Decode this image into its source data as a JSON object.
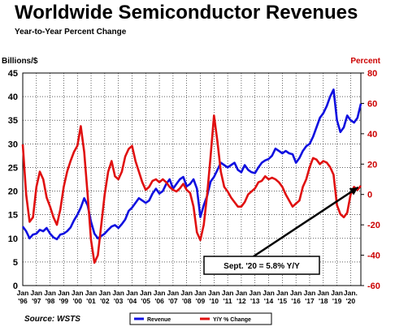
{
  "title": "Worldwide Semiconductor Revenues",
  "subtitle": "Year-to-Year Percent Change",
  "source": "Source: WSTS",
  "colors": {
    "revenue": "#1010e0",
    "yy": "#e01010",
    "right_axis": "#cc0000",
    "grid": "#000000",
    "arrow": "#000000"
  },
  "chart_data": {
    "type": "line",
    "x_tick_labels": [
      {
        "top": "Jan",
        "bottom": "'96"
      },
      {
        "top": "Jan",
        "bottom": "'97"
      },
      {
        "top": "Jan",
        "bottom": "'98"
      },
      {
        "top": "Jan",
        "bottom": "'99"
      },
      {
        "top": "Jan",
        "bottom": "'00"
      },
      {
        "top": "Jan",
        "bottom": "'01"
      },
      {
        "top": "Jan",
        "bottom": "'02"
      },
      {
        "top": "Jan",
        "bottom": "'03"
      },
      {
        "top": "Jan",
        "bottom": "'04"
      },
      {
        "top": "Jan",
        "bottom": "'05"
      },
      {
        "top": "Jan",
        "bottom": "'06"
      },
      {
        "top": "Jan",
        "bottom": "'07"
      },
      {
        "top": "Jan",
        "bottom": "'08"
      },
      {
        "top": "Jan",
        "bottom": "'09"
      },
      {
        "top": "Jan",
        "bottom": "'10"
      },
      {
        "top": "Jan",
        "bottom": "'11"
      },
      {
        "top": "Jan",
        "bottom": "'12"
      },
      {
        "top": "Jan",
        "bottom": "'13"
      },
      {
        "top": "Jan",
        "bottom": "'14"
      },
      {
        "top": "Jan",
        "bottom": "'15"
      },
      {
        "top": "Jan",
        "bottom": "'16"
      },
      {
        "top": "Jan",
        "bottom": "'17"
      },
      {
        "top": "Jan",
        "bottom": "'18"
      },
      {
        "top": "Jan",
        "bottom": "'19"
      },
      {
        "top": "Jan.",
        "bottom": "'20"
      }
    ],
    "x_range": [
      1996.0,
      2020.75
    ],
    "y_left": {
      "label": "Billions/$",
      "min": 0,
      "max": 45,
      "ticks": [
        0,
        5,
        10,
        15,
        20,
        25,
        30,
        35,
        40,
        45
      ]
    },
    "y_right": {
      "label": "Percent",
      "min": -60,
      "max": 80,
      "ticks": [
        -60,
        -40,
        -20,
        0,
        20,
        40,
        60,
        80
      ]
    },
    "grid": true,
    "legend_position": "bottom",
    "annotation": {
      "text": "Sept. '20 = 5.8% Y/Y",
      "points_to": [
        2020.67,
        5.8
      ]
    },
    "series": [
      {
        "name": "Revenue",
        "axis": "left",
        "color": "#1010e0",
        "x": [
          1996.0,
          1996.25,
          1996.5,
          1996.75,
          1997.0,
          1997.25,
          1997.5,
          1997.75,
          1998.0,
          1998.25,
          1998.5,
          1998.75,
          1999.0,
          1999.25,
          1999.5,
          1999.75,
          2000.0,
          2000.25,
          2000.5,
          2000.75,
          2001.0,
          2001.25,
          2001.5,
          2001.75,
          2002.0,
          2002.25,
          2002.5,
          2002.75,
          2003.0,
          2003.25,
          2003.5,
          2003.75,
          2004.0,
          2004.25,
          2004.5,
          2004.75,
          2005.0,
          2005.25,
          2005.5,
          2005.75,
          2006.0,
          2006.25,
          2006.5,
          2006.75,
          2007.0,
          2007.25,
          2007.5,
          2007.75,
          2008.0,
          2008.25,
          2008.5,
          2008.75,
          2009.0,
          2009.25,
          2009.5,
          2009.75,
          2010.0,
          2010.25,
          2010.5,
          2010.75,
          2011.0,
          2011.25,
          2011.5,
          2011.75,
          2012.0,
          2012.25,
          2012.5,
          2012.75,
          2013.0,
          2013.25,
          2013.5,
          2013.75,
          2014.0,
          2014.25,
          2014.5,
          2014.75,
          2015.0,
          2015.25,
          2015.5,
          2015.75,
          2016.0,
          2016.25,
          2016.5,
          2016.75,
          2017.0,
          2017.25,
          2017.5,
          2017.75,
          2018.0,
          2018.25,
          2018.5,
          2018.75,
          2019.0,
          2019.25,
          2019.5,
          2019.75,
          2020.0,
          2020.25,
          2020.5,
          2020.75
        ],
        "values": [
          12.5,
          11.5,
          10.0,
          10.8,
          11.0,
          11.8,
          11.5,
          12.2,
          11.0,
          10.2,
          9.8,
          10.8,
          11.0,
          11.5,
          12.3,
          13.8,
          15.0,
          16.5,
          18.5,
          17.0,
          13.5,
          11.0,
          10.0,
          10.5,
          11.0,
          11.8,
          12.5,
          12.8,
          12.2,
          13.0,
          14.0,
          15.8,
          16.5,
          17.5,
          18.5,
          18.0,
          17.5,
          18.0,
          19.5,
          20.5,
          19.5,
          20.0,
          21.5,
          22.5,
          20.5,
          21.5,
          22.5,
          23.0,
          21.0,
          21.5,
          22.5,
          20.5,
          14.5,
          17.0,
          19.0,
          22.0,
          23.0,
          24.5,
          26.0,
          25.5,
          25.0,
          25.5,
          26.0,
          24.5,
          24.0,
          25.5,
          24.5,
          24.0,
          23.8,
          25.0,
          26.0,
          26.5,
          26.8,
          27.5,
          29.0,
          28.5,
          28.0,
          28.5,
          28.0,
          27.8,
          26.0,
          27.0,
          28.5,
          29.5,
          30.0,
          31.5,
          33.5,
          35.5,
          36.5,
          38.0,
          40.0,
          41.5,
          35.0,
          32.5,
          33.5,
          36.0,
          35.0,
          34.5,
          35.5,
          38.5
        ]
      },
      {
        "name": "Y/Y % Change",
        "axis": "right",
        "color": "#e01010",
        "x": [
          1996.0,
          1996.25,
          1996.5,
          1996.75,
          1997.0,
          1997.25,
          1997.5,
          1997.75,
          1998.0,
          1998.25,
          1998.5,
          1998.75,
          1999.0,
          1999.25,
          1999.5,
          1999.75,
          2000.0,
          2000.25,
          2000.5,
          2000.75,
          2001.0,
          2001.25,
          2001.5,
          2001.75,
          2002.0,
          2002.25,
          2002.5,
          2002.75,
          2003.0,
          2003.25,
          2003.5,
          2003.75,
          2004.0,
          2004.25,
          2004.5,
          2004.75,
          2005.0,
          2005.25,
          2005.5,
          2005.75,
          2006.0,
          2006.25,
          2006.5,
          2006.75,
          2007.0,
          2007.25,
          2007.5,
          2007.75,
          2008.0,
          2008.25,
          2008.5,
          2008.75,
          2009.0,
          2009.25,
          2009.5,
          2009.75,
          2010.0,
          2010.25,
          2010.5,
          2010.75,
          2011.0,
          2011.25,
          2011.5,
          2011.75,
          2012.0,
          2012.25,
          2012.5,
          2012.75,
          2013.0,
          2013.25,
          2013.5,
          2013.75,
          2014.0,
          2014.25,
          2014.5,
          2014.75,
          2015.0,
          2015.25,
          2015.5,
          2015.75,
          2016.0,
          2016.25,
          2016.5,
          2016.75,
          2017.0,
          2017.25,
          2017.5,
          2017.75,
          2018.0,
          2018.25,
          2018.5,
          2018.75,
          2019.0,
          2019.25,
          2019.5,
          2019.75,
          2020.0,
          2020.25,
          2020.5,
          2020.75
        ],
        "values": [
          33,
          0,
          -18,
          -15,
          5,
          15,
          10,
          -2,
          -8,
          -15,
          -20,
          -10,
          5,
          15,
          22,
          28,
          32,
          45,
          28,
          0,
          -30,
          -45,
          -40,
          -20,
          0,
          15,
          22,
          12,
          10,
          15,
          25,
          30,
          32,
          22,
          15,
          8,
          3,
          5,
          9,
          10,
          8,
          10,
          8,
          5,
          3,
          2,
          4,
          7,
          3,
          1,
          -8,
          -25,
          -30,
          -20,
          0,
          25,
          52,
          35,
          15,
          5,
          2,
          -2,
          -5,
          -8,
          -8,
          -5,
          0,
          2,
          4,
          8,
          9,
          12,
          10,
          11,
          10,
          8,
          5,
          0,
          -4,
          -8,
          -6,
          -4,
          5,
          10,
          18,
          24,
          23,
          20,
          22,
          21,
          18,
          13,
          -7,
          -13,
          -15,
          -12,
          0,
          5,
          3,
          5.8
        ]
      }
    ]
  }
}
